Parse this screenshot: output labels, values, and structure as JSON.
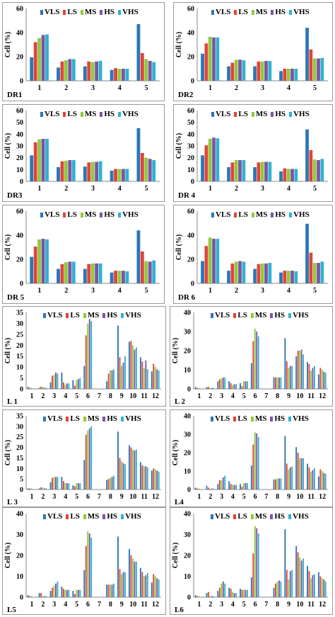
{
  "legend": [
    "VLS",
    "LS",
    "MS",
    "HS",
    "VHS"
  ],
  "colors": {
    "VLS": "#2e75b6",
    "LS": "#e0443a",
    "MS": "#92c83e",
    "HS": "#7b55a3",
    "VHS": "#31b1d0"
  },
  "ylabel": "Cell (%)",
  "chart_data": [
    {
      "type": "bar",
      "panel_label": "DR1",
      "categories": [
        "1",
        "2",
        "3",
        "4",
        "5"
      ],
      "ylim": [
        0,
        60
      ],
      "yticks": [
        "0",
        "20",
        "40",
        "60"
      ],
      "series": [
        {
          "name": "VLS",
          "values": [
            19.5,
            11,
            12,
            9,
            47
          ]
        },
        {
          "name": "LS",
          "values": [
            32,
            16,
            16,
            10.5,
            23
          ]
        },
        {
          "name": "MS",
          "values": [
            35.5,
            17,
            15.5,
            10,
            18
          ]
        },
        {
          "name": "HS",
          "values": [
            38,
            18,
            16,
            10,
            16.5
          ]
        },
        {
          "name": "VHS",
          "values": [
            38.5,
            18,
            16.5,
            10,
            15.5
          ]
        }
      ]
    },
    {
      "type": "bar",
      "panel_label": "DR2",
      "categories": [
        "1",
        "2",
        "3",
        "4",
        "5"
      ],
      "ylim": [
        0,
        60
      ],
      "yticks": [
        "0",
        "20",
        "40",
        "60"
      ],
      "series": [
        {
          "name": "VLS",
          "values": [
            22.5,
            12,
            12,
            8,
            44
          ]
        },
        {
          "name": "LS",
          "values": [
            31,
            15,
            16,
            10,
            26
          ]
        },
        {
          "name": "MS",
          "values": [
            36.5,
            17.5,
            16,
            10,
            18.5
          ]
        },
        {
          "name": "HS",
          "values": [
            36,
            17.5,
            16.5,
            10,
            18.5
          ]
        },
        {
          "name": "VHS",
          "values": [
            36,
            17,
            16.5,
            10,
            19
          ]
        }
      ]
    },
    {
      "type": "bar",
      "panel_label": "DR3",
      "categories": [
        "1",
        "2",
        "3",
        "4",
        "5"
      ],
      "ylim": [
        0,
        60
      ],
      "yticks": [
        "0",
        "10",
        "20",
        "30",
        "40",
        "50",
        "60"
      ],
      "series": [
        {
          "name": "VLS",
          "values": [
            22,
            12,
            12.5,
            9,
            45
          ]
        },
        {
          "name": "LS",
          "values": [
            33,
            17,
            16,
            10.5,
            24
          ]
        },
        {
          "name": "MS",
          "values": [
            35.5,
            17.5,
            16.5,
            10.5,
            20
          ]
        },
        {
          "name": "HS",
          "values": [
            36,
            18,
            16.5,
            10.5,
            19
          ]
        },
        {
          "name": "VHS",
          "values": [
            36,
            18,
            17,
            10.5,
            18
          ]
        }
      ]
    },
    {
      "type": "bar",
      "panel_label": "DR 4",
      "categories": [
        "1",
        "2",
        "3",
        "4",
        "5"
      ],
      "ylim": [
        0,
        60
      ],
      "yticks": [
        "0",
        "10",
        "20",
        "30",
        "40",
        "50",
        "60"
      ],
      "series": [
        {
          "name": "VLS",
          "values": [
            22,
            12,
            12,
            8.5,
            44
          ]
        },
        {
          "name": "LS",
          "values": [
            30.5,
            16,
            16,
            11,
            26.5
          ]
        },
        {
          "name": "MS",
          "values": [
            36,
            18,
            16.5,
            10.5,
            18.5
          ]
        },
        {
          "name": "HS",
          "values": [
            37,
            18,
            16.5,
            10.5,
            18
          ]
        },
        {
          "name": "VHS",
          "values": [
            36.5,
            18,
            16.5,
            10.5,
            19
          ]
        }
      ]
    },
    {
      "type": "bar",
      "panel_label": "DR 5",
      "categories": [
        "1",
        "2",
        "3",
        "4",
        "5"
      ],
      "ylim": [
        0,
        60
      ],
      "yticks": [
        "0",
        "20",
        "40",
        "60"
      ],
      "series": [
        {
          "name": "VLS",
          "values": [
            22,
            12,
            12,
            9,
            44
          ]
        },
        {
          "name": "LS",
          "values": [
            30.5,
            16,
            16,
            10.5,
            26.5
          ]
        },
        {
          "name": "MS",
          "values": [
            36.5,
            17.5,
            16.5,
            10.5,
            18.5
          ]
        },
        {
          "name": "HS",
          "values": [
            37,
            18,
            16.5,
            10.5,
            18
          ]
        },
        {
          "name": "VHS",
          "values": [
            36.5,
            18,
            16.5,
            10,
            19
          ]
        }
      ]
    },
    {
      "type": "bar",
      "panel_label": "DR 6",
      "categories": [
        "1",
        "2",
        "3",
        "4",
        "5"
      ],
      "ylim": [
        0,
        60
      ],
      "yticks": [
        "0",
        "20",
        "40",
        "60"
      ],
      "series": [
        {
          "name": "VLS",
          "values": [
            18.5,
            10.5,
            12,
            9,
            49.5
          ]
        },
        {
          "name": "LS",
          "values": [
            31,
            16.5,
            16,
            10.5,
            25.5
          ]
        },
        {
          "name": "MS",
          "values": [
            38,
            18,
            16.5,
            10.5,
            17
          ]
        },
        {
          "name": "HS",
          "values": [
            37,
            18.5,
            16.5,
            10.5,
            17
          ]
        },
        {
          "name": "VHS",
          "values": [
            37,
            18,
            17,
            10,
            18
          ]
        }
      ]
    },
    {
      "type": "bar",
      "panel_label": "L 1",
      "categories": [
        "1",
        "2",
        "3",
        "4",
        "5",
        "6",
        "7",
        "8",
        "9",
        "10",
        "11",
        "12"
      ],
      "ylim": [
        0,
        35
      ],
      "yticks": [
        "0",
        "5",
        "10",
        "15",
        "20",
        "25",
        "30",
        "35"
      ],
      "series": [
        {
          "name": "VLS",
          "values": [
            1,
            0.5,
            3,
            7.5,
            4,
            10.5,
            0,
            3.5,
            29,
            21.5,
            14.5,
            8
          ]
        },
        {
          "name": "LS",
          "values": [
            0.5,
            1,
            6,
            3,
            1.5,
            24.5,
            0,
            7,
            14.5,
            22,
            12.5,
            11.5
          ]
        },
        {
          "name": "MS",
          "values": [
            0.5,
            1,
            6.5,
            2,
            4,
            30,
            0,
            8.5,
            10.5,
            20,
            9.5,
            10
          ]
        },
        {
          "name": "HS",
          "values": [
            0,
            0.5,
            7.5,
            2.5,
            4.5,
            32,
            0,
            8.5,
            12,
            18,
            13,
            9
          ]
        },
        {
          "name": "VHS",
          "values": [
            0,
            0.5,
            7,
            2.5,
            5,
            31,
            0,
            9,
            15,
            19,
            9,
            8.5
          ]
        }
      ]
    },
    {
      "type": "bar",
      "panel_label": "L 2",
      "categories": [
        "1",
        "2",
        "3",
        "4",
        "5",
        "6",
        "7",
        "8",
        "9",
        "10",
        "11",
        "12"
      ],
      "ylim": [
        0,
        40
      ],
      "yticks": [
        "0",
        "10",
        "20",
        "30",
        "40"
      ],
      "series": [
        {
          "name": "VLS",
          "values": [
            1,
            1,
            4,
            4,
            3,
            13.5,
            0,
            6,
            26.5,
            17,
            14,
            7.5
          ]
        },
        {
          "name": "LS",
          "values": [
            0.5,
            1,
            5,
            3,
            1.5,
            25,
            0,
            6,
            14.5,
            20,
            13,
            11
          ]
        },
        {
          "name": "MS",
          "values": [
            0.5,
            0.5,
            5.5,
            2,
            4,
            31.5,
            0,
            6,
            11,
            20,
            9.5,
            10
          ]
        },
        {
          "name": "HS",
          "values": [
            0,
            0.5,
            6,
            2.5,
            4,
            30,
            0,
            6,
            12,
            20.5,
            11,
            9
          ]
        },
        {
          "name": "VHS",
          "values": [
            0,
            0.5,
            6,
            2.5,
            4,
            27.5,
            0,
            6,
            12,
            18,
            12,
            8.5
          ]
        }
      ]
    },
    {
      "type": "bar",
      "panel_label": "L 3",
      "categories": [
        "1",
        "2",
        "3",
        "4",
        "5",
        "6",
        "7",
        "8",
        "9",
        "10",
        "11",
        "12"
      ],
      "ylim": [
        0,
        35
      ],
      "yticks": [
        "0",
        "5",
        "10",
        "15",
        "20",
        "25",
        "30",
        "35"
      ],
      "series": [
        {
          "name": "VLS",
          "values": [
            0.5,
            0.5,
            3.5,
            6,
            2,
            14,
            0,
            4.5,
            27.5,
            21,
            13,
            9
          ]
        },
        {
          "name": "LS",
          "values": [
            0.5,
            1,
            5.5,
            4,
            1.5,
            26,
            0,
            5,
            15,
            20,
            11.5,
            10
          ]
        },
        {
          "name": "MS",
          "values": [
            0.5,
            1,
            6,
            3,
            3,
            28,
            0,
            5.5,
            13.5,
            19,
            11,
            9.5
          ]
        },
        {
          "name": "HS",
          "values": [
            0,
            0.5,
            6,
            3,
            3,
            29,
            0,
            6,
            12.5,
            18.5,
            11,
            9
          ]
        },
        {
          "name": "VHS",
          "values": [
            0,
            0.5,
            6,
            3,
            3,
            30,
            0,
            6.5,
            12,
            19,
            10.5,
            8.5
          ]
        }
      ]
    },
    {
      "type": "bar",
      "panel_label": "L4",
      "categories": [
        "1",
        "2",
        "3",
        "4",
        "5",
        "6",
        "7",
        "8",
        "9",
        "10",
        "11",
        "12"
      ],
      "ylim": [
        0,
        40
      ],
      "yticks": [
        "0",
        "10",
        "20",
        "30",
        "40"
      ],
      "series": [
        {
          "name": "VLS",
          "values": [
            1,
            2,
            3,
            4.5,
            3,
            13,
            0,
            5.5,
            29,
            23,
            14,
            7
          ]
        },
        {
          "name": "LS",
          "values": [
            0.5,
            1,
            5,
            3,
            1.5,
            24.5,
            0,
            5.5,
            14,
            20,
            12,
            11
          ]
        },
        {
          "name": "MS",
          "values": [
            0.5,
            0.5,
            5,
            2.5,
            3.5,
            31,
            0,
            6,
            11,
            17,
            9.5,
            10
          ]
        },
        {
          "name": "HS",
          "values": [
            0,
            0.5,
            6.5,
            2.5,
            3.5,
            30.5,
            0,
            6,
            12,
            17,
            10.5,
            9
          ]
        },
        {
          "name": "VHS",
          "values": [
            0,
            0.5,
            7.5,
            2.5,
            3.5,
            28.5,
            0,
            6,
            12.5,
            17,
            11.5,
            8.5
          ]
        }
      ]
    },
    {
      "type": "bar",
      "panel_label": "L5",
      "categories": [
        "1",
        "2",
        "3",
        "4",
        "5",
        "6",
        "7",
        "8",
        "9",
        "10",
        "11",
        "12"
      ],
      "ylim": [
        0,
        40
      ],
      "yticks": [
        "0",
        "10",
        "20",
        "30",
        "40"
      ],
      "series": [
        {
          "name": "VLS",
          "values": [
            1,
            2,
            3,
            5,
            3,
            13,
            0,
            6,
            29,
            23,
            14,
            7
          ]
        },
        {
          "name": "LS",
          "values": [
            0.5,
            2,
            4.5,
            4,
            1.5,
            24.5,
            0,
            6,
            13.5,
            20,
            12,
            11
          ]
        },
        {
          "name": "MS",
          "values": [
            0.5,
            0.5,
            5.5,
            3.5,
            3.5,
            31.5,
            0,
            6,
            11,
            18.5,
            10,
            10
          ]
        },
        {
          "name": "HS",
          "values": [
            0,
            0.5,
            6.5,
            3.5,
            3.5,
            30.5,
            0,
            6,
            12,
            17,
            10.5,
            9
          ]
        },
        {
          "name": "VHS",
          "values": [
            0,
            0.5,
            7.5,
            3.5,
            3.5,
            28.5,
            0,
            6.5,
            12,
            17,
            11.5,
            8.5
          ]
        }
      ]
    },
    {
      "type": "bar",
      "panel_label": "L6",
      "categories": [
        "1",
        "2",
        "3",
        "4",
        "5",
        "6",
        "7",
        "8",
        "9",
        "10",
        "11",
        "12"
      ],
      "ylim": [
        0,
        40
      ],
      "yticks": [
        "0",
        "10",
        "20",
        "30",
        "40"
      ],
      "series": [
        {
          "name": "VLS",
          "values": [
            1,
            2,
            3,
            4.5,
            4,
            9.5,
            0,
            4.5,
            32.5,
            24.5,
            15,
            12
          ]
        },
        {
          "name": "LS",
          "values": [
            0.5,
            2.5,
            4.5,
            4,
            3.5,
            21,
            0,
            6.5,
            13,
            21.5,
            12.5,
            10
          ]
        },
        {
          "name": "MS",
          "values": [
            0.5,
            0.5,
            6.5,
            2.5,
            3.5,
            34,
            0,
            7.5,
            8.5,
            19,
            9,
            9
          ]
        },
        {
          "name": "HS",
          "values": [
            0,
            0.5,
            7.5,
            2,
            3.5,
            33,
            0,
            8,
            12.5,
            17.5,
            10.5,
            8.5
          ]
        },
        {
          "name": "VHS",
          "values": [
            0,
            0.5,
            6.5,
            2,
            3.5,
            30.5,
            0,
            7.5,
            13,
            18.5,
            11,
            7.5
          ]
        }
      ]
    }
  ]
}
